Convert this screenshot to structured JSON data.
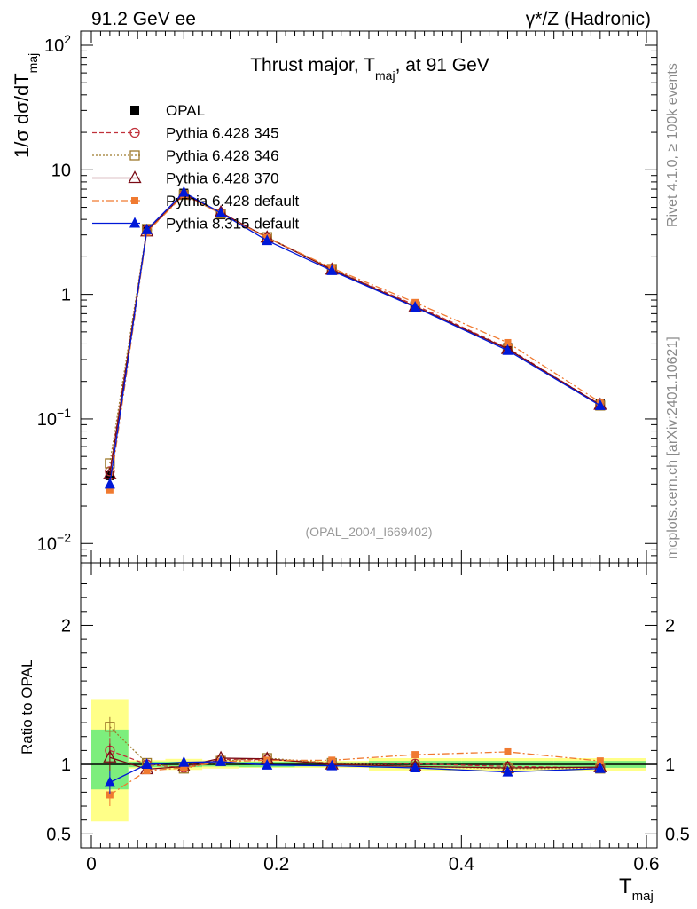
{
  "header": {
    "left": "91.2 GeV ee",
    "right": "γ*/Z (Hadronic)"
  },
  "side": {
    "rivet": "Rivet 4.1.0, ≥ 100k events",
    "mcplots": "mcplots.cern.ch [arXiv:2401.10621]"
  },
  "colors": {
    "data": "#000000",
    "s345": "#c0303a",
    "s346": "#9e7a2c",
    "s370": "#7a0a14",
    "s6def": "#f07a30",
    "s8def": "#0018d8",
    "band_inner": "#7dee7d",
    "band_outer": "#ffff88"
  },
  "chart_data": [
    {
      "type": "line",
      "panel": "main",
      "title": "Thrust major, T_maj, at 91 GeV",
      "title_parts": {
        "pre": "Thrust major, T",
        "sub": "maj",
        "post": ", at 91 GeV"
      },
      "ylabel_parts": {
        "pre": "1/σ  dσ/dT",
        "sub": "maj"
      },
      "yscale": "log",
      "ylim": [
        0.007,
        130
      ],
      "xlim": [
        -0.02,
        0.61
      ],
      "yticks": [
        {
          "v": 0.01,
          "base": "10",
          "exp": "−2"
        },
        {
          "v": 0.1,
          "base": "10",
          "exp": "−1"
        },
        {
          "v": 1,
          "base": "1",
          "exp": ""
        },
        {
          "v": 10,
          "base": "10",
          "exp": ""
        },
        {
          "v": 100,
          "base": "10",
          "exp": "2"
        }
      ],
      "analysis_label": "(OPAL_2004_I669402)",
      "legend_position": "top-left",
      "x": [
        0.02,
        0.06,
        0.1,
        0.14,
        0.19,
        0.26,
        0.35,
        0.45,
        0.55
      ],
      "series": [
        {
          "name": "OPAL",
          "key": "data",
          "marker": "filled-square",
          "values": [
            0.035,
            3.3,
            6.5,
            4.35,
            2.75,
            1.58,
            0.81,
            0.375,
            0.132
          ]
        },
        {
          "name": "Pythia 6.428 345",
          "key": "s345",
          "marker": "open-circle",
          "dash": "5,3",
          "values": [
            0.038,
            3.3,
            6.35,
            4.5,
            2.85,
            1.6,
            0.82,
            0.37,
            0.13
          ]
        },
        {
          "name": "Pythia 6.428 346",
          "key": "s346",
          "marker": "open-square",
          "dash": "2,2",
          "values": [
            0.044,
            3.35,
            6.3,
            4.45,
            2.88,
            1.6,
            0.8,
            0.365,
            0.128
          ]
        },
        {
          "name": "Pythia 6.428 370",
          "key": "s370",
          "marker": "open-triangle",
          "dash": "",
          "values": [
            0.036,
            3.2,
            6.4,
            4.55,
            2.86,
            1.58,
            0.8,
            0.365,
            0.13
          ]
        },
        {
          "name": "Pythia 6.428 default",
          "key": "s6def",
          "marker": "filled-square-small",
          "dash": "8,3,2,3",
          "values": [
            0.027,
            3.15,
            6.3,
            4.45,
            2.85,
            1.63,
            0.86,
            0.41,
            0.136
          ]
        },
        {
          "name": "Pythia 8.315 default",
          "key": "s8def",
          "marker": "filled-triangle",
          "dash": "",
          "values": [
            0.03,
            3.3,
            6.6,
            4.5,
            2.7,
            1.55,
            0.79,
            0.355,
            0.128
          ]
        }
      ]
    },
    {
      "type": "line",
      "panel": "ratio",
      "ylabel": "Ratio to OPAL",
      "xlabel_parts": {
        "pre": "T",
        "sub": "maj"
      },
      "ylim": [
        0.4,
        2.45
      ],
      "xlim": [
        -0.02,
        0.61
      ],
      "yticks": [
        0.5,
        1,
        2
      ],
      "xticks": [
        0,
        0.2,
        0.4,
        0.6
      ],
      "xtick_labels": [
        "0",
        "0.2",
        "0.4",
        "0.6"
      ],
      "ytick_labels": [
        "0.5",
        "1",
        "2"
      ],
      "bands": {
        "edges": [
          0.0,
          0.04,
          0.08,
          0.12,
          0.16,
          0.22,
          0.3,
          0.4,
          0.5,
          0.6
        ],
        "inner_lo": [
          0.82,
          0.98,
          0.98,
          0.985,
          0.98,
          0.985,
          0.975,
          0.975,
          0.975
        ],
        "inner_hi": [
          1.25,
          1.02,
          1.02,
          1.015,
          1.02,
          1.015,
          1.025,
          1.025,
          1.025
        ],
        "outer_lo": [
          0.59,
          0.97,
          0.96,
          0.97,
          0.975,
          0.975,
          0.955,
          0.955,
          0.955
        ],
        "outer_hi": [
          1.47,
          1.03,
          1.04,
          1.03,
          1.025,
          1.025,
          1.045,
          1.045,
          1.045
        ]
      },
      "x": [
        0.02,
        0.06,
        0.1,
        0.14,
        0.19,
        0.26,
        0.35,
        0.45,
        0.55
      ],
      "series": [
        {
          "name": "Pythia 6.428 345",
          "key": "s345",
          "marker": "open-circle",
          "dash": "5,3",
          "values": [
            1.1,
            1.0,
            0.975,
            1.035,
            1.035,
            1.01,
            1.005,
            0.985,
            0.975
          ],
          "err": [
            0.09,
            0,
            0,
            0,
            0,
            0,
            0,
            0,
            0
          ]
        },
        {
          "name": "Pythia 6.428 346",
          "key": "s346",
          "marker": "open-square",
          "dash": "2,2",
          "values": [
            1.27,
            1.01,
            0.97,
            1.025,
            1.045,
            1.01,
            0.985,
            0.97,
            0.97
          ],
          "err": [
            0.07,
            0,
            0,
            0,
            0,
            0,
            0,
            0,
            0
          ]
        },
        {
          "name": "Pythia 6.428 370",
          "key": "s370",
          "marker": "open-triangle",
          "dash": "",
          "values": [
            1.05,
            0.965,
            0.985,
            1.045,
            1.04,
            1.0,
            0.985,
            0.975,
            0.98
          ],
          "err": [
            0.1,
            0,
            0,
            0,
            0,
            0,
            0,
            0,
            0
          ]
        },
        {
          "name": "Pythia 6.428 default",
          "key": "s6def",
          "marker": "filled-square-small",
          "dash": "8,3,2,3",
          "values": [
            0.78,
            0.955,
            0.975,
            1.02,
            1.03,
            1.03,
            1.07,
            1.09,
            1.025
          ],
          "err": [
            0.08,
            0,
            0,
            0,
            0,
            0,
            0,
            0,
            0
          ]
        },
        {
          "name": "Pythia 8.315 default",
          "key": "s8def",
          "marker": "filled-triangle",
          "dash": "",
          "values": [
            0.87,
            1.0,
            1.015,
            1.02,
            0.995,
            0.99,
            0.975,
            0.945,
            0.97
          ],
          "err": [
            0.08,
            0,
            0,
            0,
            0,
            0,
            0,
            0,
            0
          ]
        }
      ]
    }
  ]
}
